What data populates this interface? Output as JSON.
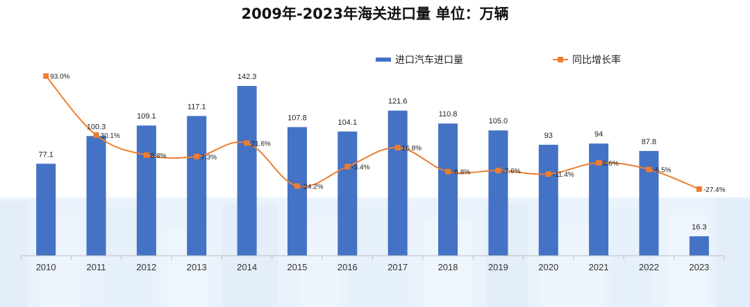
{
  "title": "2009年-2023年海关进口量 单位：万辆",
  "colors": {
    "bar": "#4472C4",
    "line": "#ED7D31",
    "axis": "#BFBFBF",
    "text": "#222222"
  },
  "legend": {
    "bar_label": "进口汽车进口量",
    "line_label": "同比增长率"
  },
  "chart_data": {
    "type": "bar",
    "categories": [
      "2010",
      "2011",
      "2012",
      "2013",
      "2014",
      "2015",
      "2016",
      "2017",
      "2018",
      "2019",
      "2020",
      "2021",
      "2022",
      "2023"
    ],
    "series": [
      {
        "name": "进口汽车进口量",
        "type": "bar",
        "values": [
          77.1,
          100.3,
          109.1,
          117.1,
          142.3,
          107.8,
          104.1,
          121.6,
          110.8,
          105.0,
          93,
          94,
          87.8,
          16.3
        ],
        "labels": [
          "77.1",
          "100.3",
          "109.1",
          "117.1",
          "142.3",
          "107.8",
          "104.1",
          "121.6",
          "110.8",
          "105.0",
          "93",
          "94",
          "87.8",
          "16.3"
        ]
      },
      {
        "name": "同比增长率",
        "type": "line",
        "values": [
          93.0,
          30.1,
          8.8,
          7.3,
          21.6,
          -24.2,
          -3.4,
          16.8,
          -8.8,
          -7.6,
          -11.4,
          0.6,
          -6.5,
          -27.4
        ],
        "labels": [
          "93.0%",
          "30.1%",
          "8.8%",
          "7.3%",
          "21.6%",
          "-24.2%",
          "-3.4%",
          "16.8%",
          "-8.8%",
          "-7.6%",
          "-11.4%",
          "0.6%",
          "-6.5%",
          "-27.4%"
        ]
      }
    ],
    "grid": false,
    "legend_position": "top"
  }
}
